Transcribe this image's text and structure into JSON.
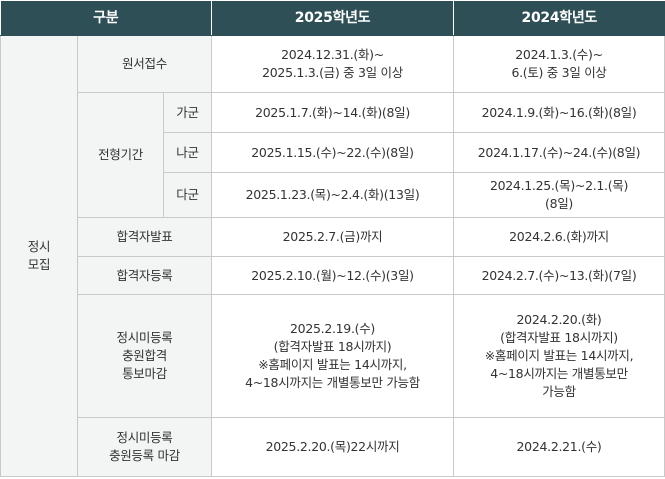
{
  "header": {
    "category": "구분",
    "year_2025": "2025학년도",
    "year_2024": "2024학년도"
  },
  "section_label_lines": [
    "정시",
    "모집"
  ],
  "rows": {
    "application": {
      "label": "원서접수",
      "v2025": [
        "2024.12.31.(화)~",
        "2025.1.3.(금) 중 3일 이상"
      ],
      "v2024": [
        "2024.1.3.(수)~",
        "6.(토) 중 3일 이상"
      ]
    },
    "screening": {
      "label": "전형기간",
      "groups": [
        {
          "name": "가군",
          "v2025": "2025.1.7.(화)~14.(화)(8일)",
          "v2024": [
            "2024.1.9.(화)~16.(화)(8일)"
          ]
        },
        {
          "name": "나군",
          "v2025": "2025.1.15.(수)~22.(수)(8일)",
          "v2024": [
            "2024.1.17.(수)~24.(수)(8일)"
          ]
        },
        {
          "name": "다군",
          "v2025": "2025.1.23.(목)~2.4.(화)(13일)",
          "v2024": [
            "2024.1.25.(목)~2.1.(목)",
            "(8일)"
          ]
        }
      ]
    },
    "announcement": {
      "label": "합격자발표",
      "v2025": "2025.2.7.(금)까지",
      "v2024": "2024.2.6.(화)까지"
    },
    "registration": {
      "label": "합격자등록",
      "v2025": "2025.2.10.(월)~12.(수)(3일)",
      "v2024": "2024.2.7.(수)~13.(화)(7일)"
    },
    "notification": {
      "label_lines": [
        "정시미등록",
        "충원합격",
        "통보마감"
      ],
      "v2025": [
        "2025.2.19.(수)",
        "(합격자발표 18시까지)",
        "※홈페이지 발표는 14시까지,",
        "4~18시까지는 개별통보만 가능함"
      ],
      "v2024": [
        "2024.2.20.(화)",
        "(합격자발표 18시까지)",
        "※홈페이지 발표는 14시까지,",
        "4~18시까지는 개별통보만",
        "가능함"
      ]
    },
    "deadline": {
      "label_lines": [
        "정시미등록",
        "충원등록 마감"
      ],
      "v2025": "2025.2.20.(목)22시까지",
      "v2024": "2024.2.21.(수)"
    }
  }
}
